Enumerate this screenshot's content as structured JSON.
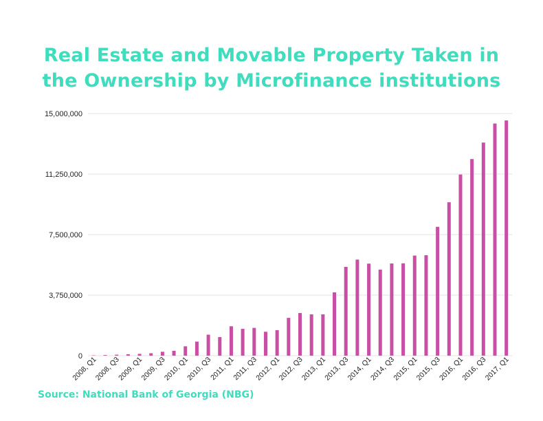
{
  "title_lines": [
    "Real Estate and Movable Property Taken in",
    "the Ownership by Microfinance institutions"
  ],
  "source": "Source: National Bank of Georgia (NBG)",
  "colors": {
    "title": "#3fdcbd",
    "bar": "#c94fa5",
    "grid": "#e3e3e3"
  },
  "chart_data": {
    "type": "bar",
    "title": "Real Estate and Movable Property Taken in the Ownership by Microfinance institutions",
    "xlabel": "",
    "ylabel": "",
    "ylim": [
      0,
      15000000
    ],
    "yticks": [
      0,
      3750000,
      7500000,
      11250000,
      15000000
    ],
    "ytick_labels": [
      "0",
      "3,750,000",
      "7,500,000",
      "11,250,000",
      "15,000,000"
    ],
    "grid": true,
    "categories": [
      "2008, Q1",
      "2008, Q2",
      "2008, Q3",
      "2008, Q4",
      "2009, Q1",
      "2009, Q2",
      "2009, Q3",
      "2009, Q4",
      "2010, Q1",
      "2010, Q2",
      "2010, Q3",
      "2010, Q4",
      "2011, Q1",
      "2011, Q2",
      "2011, Q3",
      "2011, Q4",
      "2012, Q1",
      "2012, Q2",
      "2012, Q3",
      "2012, Q4",
      "2013, Q1",
      "2013, Q2",
      "2013, Q3",
      "2013, Q4",
      "2014, Q1",
      "2014, Q2",
      "2014, Q3",
      "2014, Q4",
      "2015, Q1",
      "2015, Q2",
      "2015, Q3",
      "2015, Q4",
      "2016, Q1",
      "2016, Q2",
      "2016, Q3",
      "2016, Q4",
      "2017, Q1"
    ],
    "xtick_labels_shown": [
      "2008, Q1",
      "2008, Q3",
      "2009, Q1",
      "2009, Q3",
      "2010, Q1",
      "2010, Q3",
      "2011, Q1",
      "2011, Q3",
      "2012, Q1",
      "2012, Q3",
      "2013, Q1",
      "2013, Q3",
      "2014, Q1",
      "2014, Q3",
      "2015, Q1",
      "2015, Q3",
      "2016, Q1",
      "2016, Q3",
      "2017, Q1"
    ],
    "values": [
      20000,
      40000,
      60000,
      90000,
      110000,
      150000,
      240000,
      300000,
      580000,
      870000,
      1300000,
      1150000,
      1820000,
      1660000,
      1720000,
      1480000,
      1580000,
      2340000,
      2640000,
      2560000,
      2560000,
      3920000,
      5500000,
      5950000,
      5700000,
      5330000,
      5710000,
      5720000,
      6200000,
      6220000,
      7980000,
      9500000,
      11220000,
      12180000,
      13200000,
      14380000,
      14570000
    ]
  }
}
